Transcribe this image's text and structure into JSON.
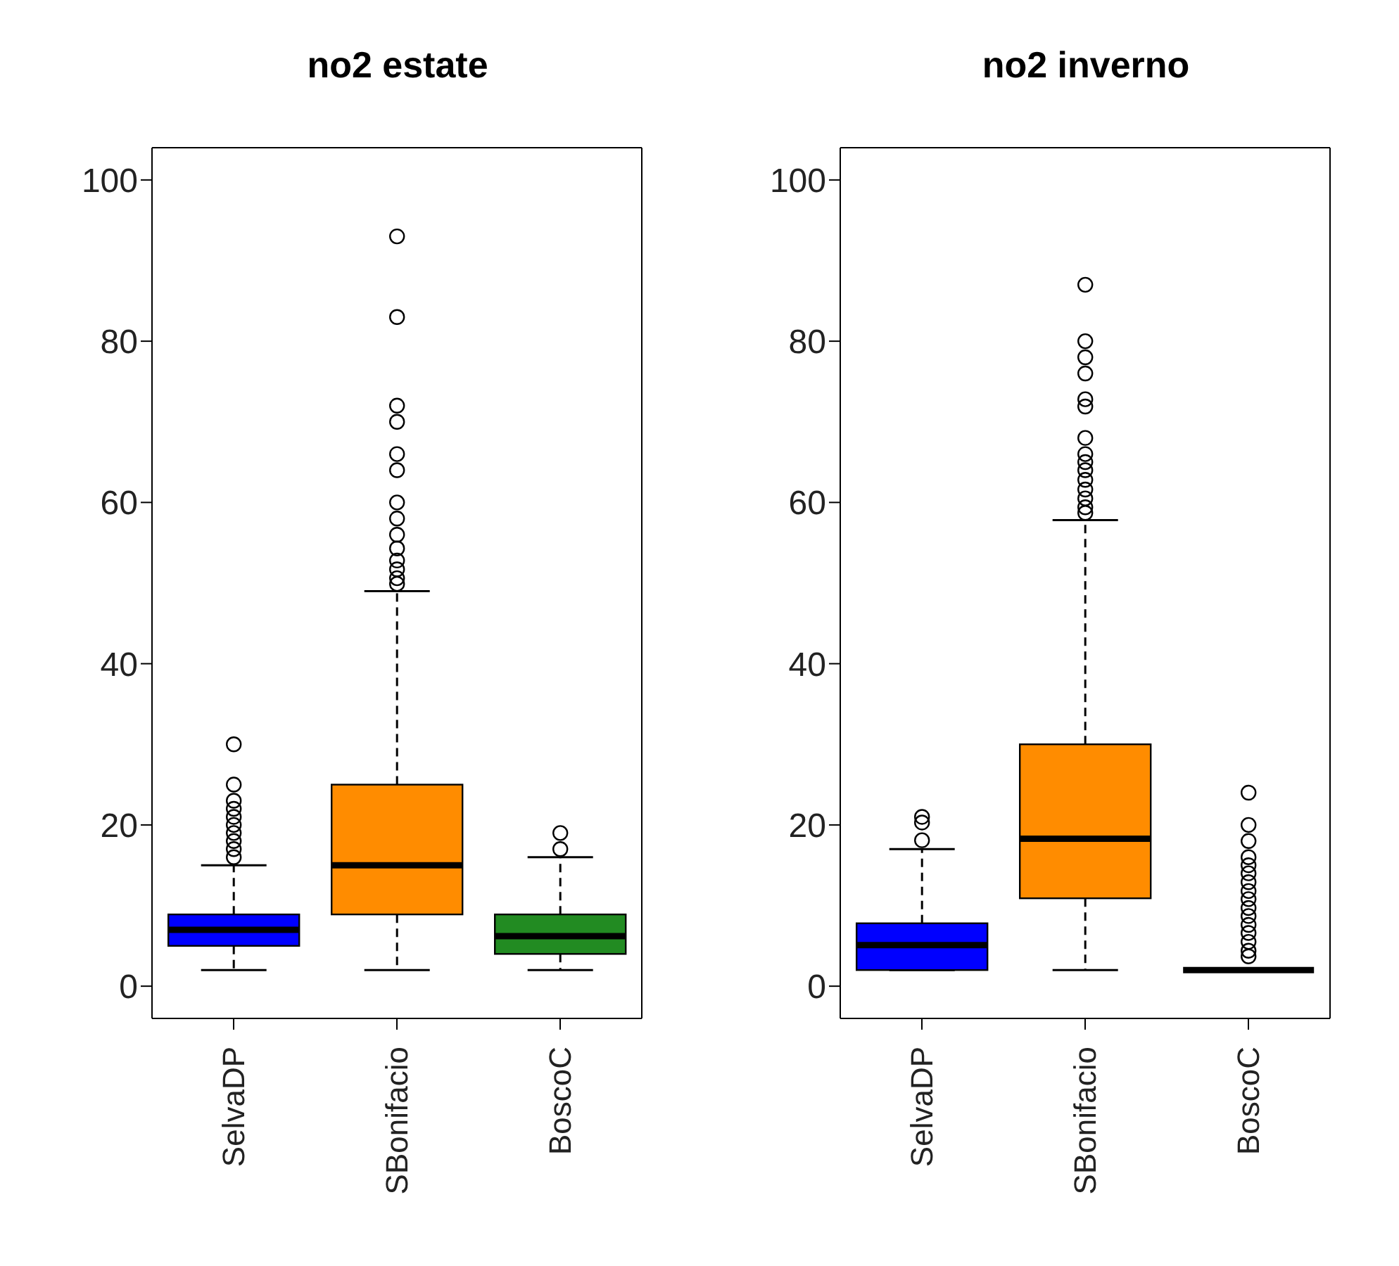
{
  "chart_data": [
    {
      "type": "box",
      "title": "no2 estate",
      "categories": [
        "SelvaDP",
        "SBonifacio",
        "BoscoC"
      ],
      "colors": [
        "#0000ff",
        "#ff8c00",
        "#228b22"
      ],
      "ylim": [
        -4,
        104
      ],
      "yticks": [
        0,
        20,
        40,
        60,
        80,
        100
      ],
      "boxes": [
        {
          "low": 2,
          "q1": 5,
          "median": 7,
          "q3": 8.9,
          "high": 15,
          "outliers": [
            30,
            25,
            23,
            22,
            21,
            20,
            19,
            18,
            17,
            16
          ]
        },
        {
          "low": 2,
          "q1": 8.9,
          "median": 15,
          "q3": 25,
          "high": 49,
          "outliers": [
            93,
            83,
            72,
            70,
            66,
            64,
            60,
            58,
            56,
            54.3,
            52.8,
            51.7,
            50.6,
            49.9
          ]
        },
        {
          "low": 2,
          "q1": 4,
          "median": 6.2,
          "q3": 8.9,
          "high": 16,
          "outliers": [
            17,
            19
          ]
        }
      ]
    },
    {
      "type": "box",
      "title": "no2 inverno",
      "categories": [
        "SelvaDP",
        "SBonifacio",
        "BoscoC"
      ],
      "colors": [
        "#0000ff",
        "#ff8c00",
        "#000000"
      ],
      "ylim": [
        -4,
        104
      ],
      "yticks": [
        0,
        20,
        40,
        60,
        80,
        100
      ],
      "boxes": [
        {
          "low": 2,
          "q1": 2,
          "median": 5.1,
          "q3": 7.8,
          "high": 17,
          "outliers": [
            18.1,
            20.3,
            21
          ]
        },
        {
          "low": 2,
          "q1": 10.9,
          "median": 18.3,
          "q3": 30,
          "high": 57.8,
          "outliers": [
            87,
            80,
            78,
            76,
            72.8,
            71.9,
            68,
            66,
            65,
            64,
            62.8,
            61.6,
            60.5,
            59.4,
            58.7
          ]
        },
        {
          "low": 2,
          "q1": 2,
          "median": 2,
          "q3": 2,
          "high": 2,
          "outliers": [
            24,
            20,
            18,
            16,
            15,
            14,
            12.9,
            11.8,
            10.8,
            9.7,
            8.7,
            7.6,
            6.6,
            5.5,
            4.4,
            3.7
          ]
        }
      ]
    }
  ]
}
